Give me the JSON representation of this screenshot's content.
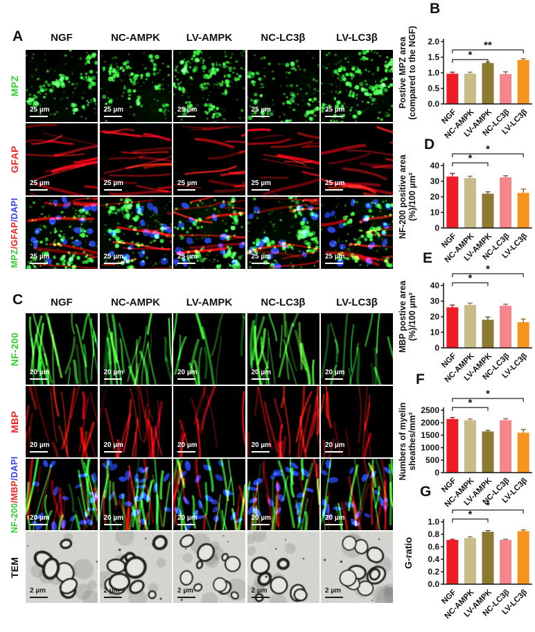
{
  "figure_colors": {
    "bar_colors": [
      "#ee1c25",
      "#c8bb86",
      "#8d7a31",
      "#f5868c",
      "#f7941e"
    ],
    "green_label": "#33cc33",
    "red_label": "#ee2222",
    "blue_label": "#3344ee",
    "tem_label": "#111111"
  },
  "categories": [
    "NGF",
    "NC-AMPK",
    "LV-AMPK",
    "NC-LC3β",
    "LV-LC3β"
  ],
  "panel_a": {
    "label": "A",
    "columns": [
      "NGF",
      "NC-AMPK",
      "LV-AMPK",
      "NC-LC3β",
      "LV-LC3β"
    ],
    "rows": [
      {
        "name": "MPZ",
        "label_parts": [
          {
            "text": "MPZ",
            "color": "#33cc33"
          }
        ],
        "scale_bar": "25 µm",
        "texture": "green_blobs"
      },
      {
        "name": "GFAP",
        "label_parts": [
          {
            "text": "GFAP",
            "color": "#ee2222"
          }
        ],
        "scale_bar": "25 µm",
        "texture": "red_streaks"
      },
      {
        "name": "MPZ/GFAP/DAPI",
        "label_parts": [
          {
            "text": "MPZ",
            "color": "#33cc33"
          },
          {
            "text": "/",
            "color": "#ee2222"
          },
          {
            "text": "GFAP",
            "color": "#ee2222"
          },
          {
            "text": "/",
            "color": "#3344ee"
          },
          {
            "text": "DAPI",
            "color": "#3344ee"
          }
        ],
        "scale_bar": "25 µm",
        "texture": "merge_blobs"
      }
    ]
  },
  "panel_c": {
    "label": "C",
    "columns": [
      "NGF",
      "NC-AMPK",
      "LV-AMPK",
      "NC-LC3β",
      "LV-LC3β"
    ],
    "rows": [
      {
        "name": "NF-200",
        "label_parts": [
          {
            "text": "NF-200",
            "color": "#33cc33"
          }
        ],
        "scale_bar": "20 µm",
        "texture": "green_fibers"
      },
      {
        "name": "MBP",
        "label_parts": [
          {
            "text": "MBP",
            "color": "#ee2222"
          }
        ],
        "scale_bar": "20 µm",
        "texture": "red_fibers"
      },
      {
        "name": "NF-200/MBP/DAPI",
        "label_parts": [
          {
            "text": "NF-200",
            "color": "#33cc33"
          },
          {
            "text": "/",
            "color": "#ee2222"
          },
          {
            "text": "MBP",
            "color": "#ee2222"
          },
          {
            "text": "/",
            "color": "#3344ee"
          },
          {
            "text": "DAPI",
            "color": "#3344ee"
          }
        ],
        "scale_bar": "20 µm",
        "texture": "merge_fibers"
      },
      {
        "name": "TEM",
        "label_parts": [
          {
            "text": "TEM",
            "color": "#111111"
          }
        ],
        "scale_bar": "2 µm",
        "texture": "tem"
      }
    ]
  },
  "chart_data": [
    {
      "panel": "B",
      "type": "bar",
      "ylabel_lines": [
        "Postive MPZ area",
        "(compared to the NGF)"
      ],
      "categories": [
        "NGF",
        "NC-AMPK",
        "LV-AMPK",
        "NC-LC3β",
        "LV-LC3β"
      ],
      "values": [
        0.97,
        0.97,
        1.31,
        0.96,
        1.41
      ],
      "errors": [
        0.05,
        0.05,
        0.03,
        0.07,
        0.04
      ],
      "ylim": [
        0,
        2.0
      ],
      "ytick_labels": [
        "0.0",
        "0.5",
        "1.0",
        "1.5",
        "2.0"
      ],
      "significance": [
        {
          "from": 0,
          "to": 2,
          "label": "*"
        },
        {
          "from": 0,
          "to": 4,
          "label": "**"
        }
      ],
      "sig_inside": true
    },
    {
      "panel": "D",
      "type": "bar",
      "ylabel_lines": [
        "NF-200 positive area",
        "(%)/100 µm²"
      ],
      "categories": [
        "NGF",
        "NC-AMPK",
        "LV-AMPK",
        "NC-LC3β",
        "LV-LC3β"
      ],
      "values": [
        33,
        32,
        22,
        32.5,
        22.5
      ],
      "errors": [
        2,
        1.2,
        1.2,
        1,
        2.5
      ],
      "ylim": [
        0,
        40
      ],
      "ytick_labels": [
        "0",
        "10",
        "20",
        "30",
        "40"
      ],
      "significance": [
        {
          "from": 0,
          "to": 2,
          "label": "*"
        },
        {
          "from": 0,
          "to": 4,
          "label": "*"
        }
      ],
      "sig_inside": false
    },
    {
      "panel": "E",
      "type": "bar",
      "ylabel_lines": [
        "MBP postive area",
        "(%)/100 µm²"
      ],
      "categories": [
        "NGF",
        "NC-AMPK",
        "LV-AMPK",
        "NC-LC3β",
        "LV-LC3β"
      ],
      "values": [
        26,
        27.5,
        18,
        27,
        16.5
      ],
      "errors": [
        1.5,
        1.2,
        1.8,
        1,
        2
      ],
      "ylim": [
        0,
        40
      ],
      "ytick_labels": [
        "0",
        "10",
        "20",
        "30",
        "40"
      ],
      "significance": [
        {
          "from": 0,
          "to": 2,
          "label": "*"
        },
        {
          "from": 0,
          "to": 4,
          "label": "*"
        }
      ],
      "sig_inside": false
    },
    {
      "panel": "F",
      "type": "bar",
      "ylabel_lines": [
        "Numbers of myelin",
        "sheathes/mm²"
      ],
      "categories": [
        "NGF",
        "NC-AMPK",
        "LV-AMPK",
        "NC-LC3β",
        "LV-LC3β"
      ],
      "values": [
        2150,
        2100,
        1650,
        2100,
        1600
      ],
      "errors": [
        60,
        50,
        40,
        60,
        130
      ],
      "ylim": [
        0,
        2500
      ],
      "ytick_labels": [
        "0",
        "500",
        "1000",
        "1500",
        "2000",
        "2500"
      ],
      "significance": [
        {
          "from": 0,
          "to": 2,
          "label": "*"
        },
        {
          "from": 0,
          "to": 4,
          "label": "*"
        }
      ],
      "sig_inside": false
    },
    {
      "panel": "G",
      "type": "bar",
      "ylabel_lines": [
        "G-ratio"
      ],
      "categories": [
        "NGF",
        "NC-AMPK",
        "LV-AMPK",
        "NC-LC3β",
        "LV-LC3β"
      ],
      "values": [
        0.71,
        0.74,
        0.84,
        0.71,
        0.85
      ],
      "errors": [
        0.01,
        0.02,
        0.02,
        0.01,
        0.02
      ],
      "ylim": [
        0,
        1.0
      ],
      "ytick_labels": [
        "0.0",
        "0.2",
        "0.4",
        "0.6",
        "0.8",
        "1.0"
      ],
      "significance": [
        {
          "from": 0,
          "to": 2,
          "label": "*"
        },
        {
          "from": 0,
          "to": 4,
          "label": "*"
        }
      ],
      "sig_inside": false
    }
  ]
}
